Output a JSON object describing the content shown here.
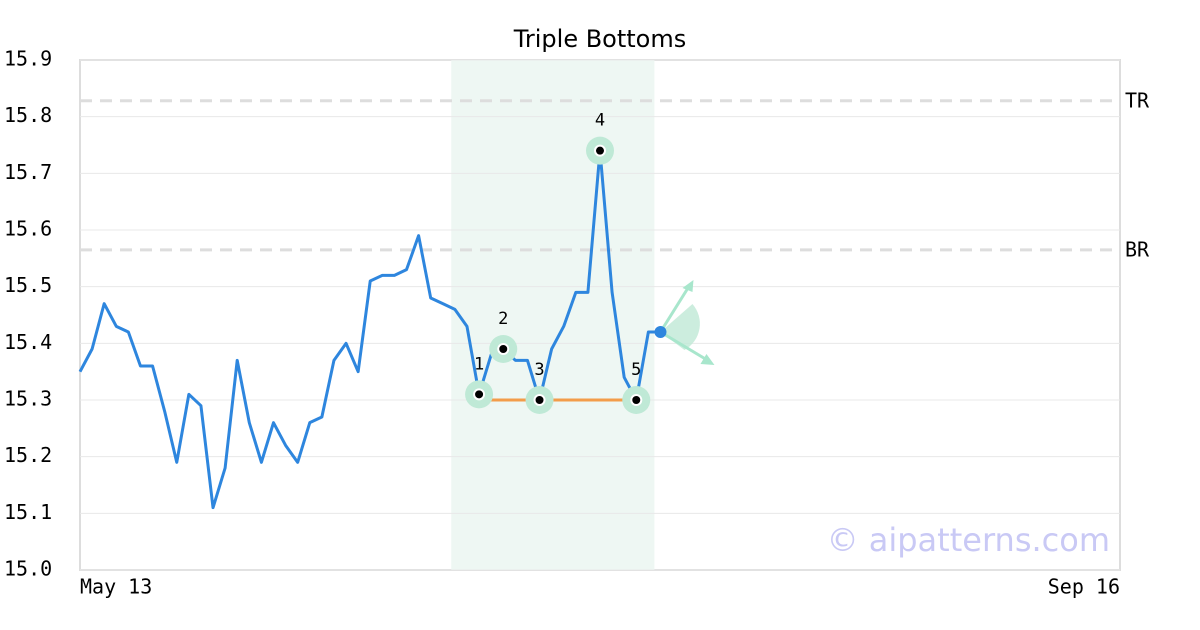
{
  "chart_data": {
    "type": "line",
    "title": "Triple Bottoms",
    "values": [
      15.35,
      15.39,
      15.47,
      15.43,
      15.42,
      15.36,
      15.36,
      15.28,
      15.19,
      15.31,
      15.29,
      15.11,
      15.18,
      15.37,
      15.26,
      15.19,
      15.26,
      15.22,
      15.19,
      15.26,
      15.27,
      15.37,
      15.4,
      15.35,
      15.51,
      15.52,
      15.52,
      15.53,
      15.59,
      15.48,
      15.47,
      15.46,
      15.43,
      15.31,
      15.38,
      15.39,
      15.37,
      15.37,
      15.3,
      15.39,
      15.43,
      15.49,
      15.49,
      15.74,
      15.49,
      15.34,
      15.3,
      15.42,
      15.42
    ],
    "color": "#2e86de",
    "xlim": [
      0,
      86
    ],
    "xticks": [
      {
        "value": 0,
        "label": "May 13"
      },
      {
        "value": 86,
        "label": "Sep 16"
      }
    ],
    "ylim": [
      15.0,
      15.9
    ],
    "yticks": [
      {
        "value": 15.0,
        "label": "15.0"
      },
      15.1,
      15.2,
      15.3,
      15.4,
      15.5,
      15.6,
      15.7,
      15.8,
      15.9
    ],
    "grid": true,
    "levels": [
      {
        "label": "TR",
        "value": 15.828
      },
      {
        "label": "BR",
        "value": 15.565
      }
    ],
    "pattern_range": [
      30.7,
      47.5
    ],
    "pattern_points": [
      {
        "label": "1",
        "x": 33,
        "y": 15.31
      },
      {
        "label": "2",
        "x": 35,
        "y": 15.39
      },
      {
        "label": "3",
        "x": 38,
        "y": 15.3
      },
      {
        "label": "4",
        "x": 43,
        "y": 15.74
      },
      {
        "label": "5",
        "x": 46,
        "y": 15.3
      }
    ],
    "support": {
      "x": [
        33,
        46
      ],
      "y": 15.3,
      "color": "#f39c4a"
    },
    "watermark": "© aipatterns.com"
  }
}
